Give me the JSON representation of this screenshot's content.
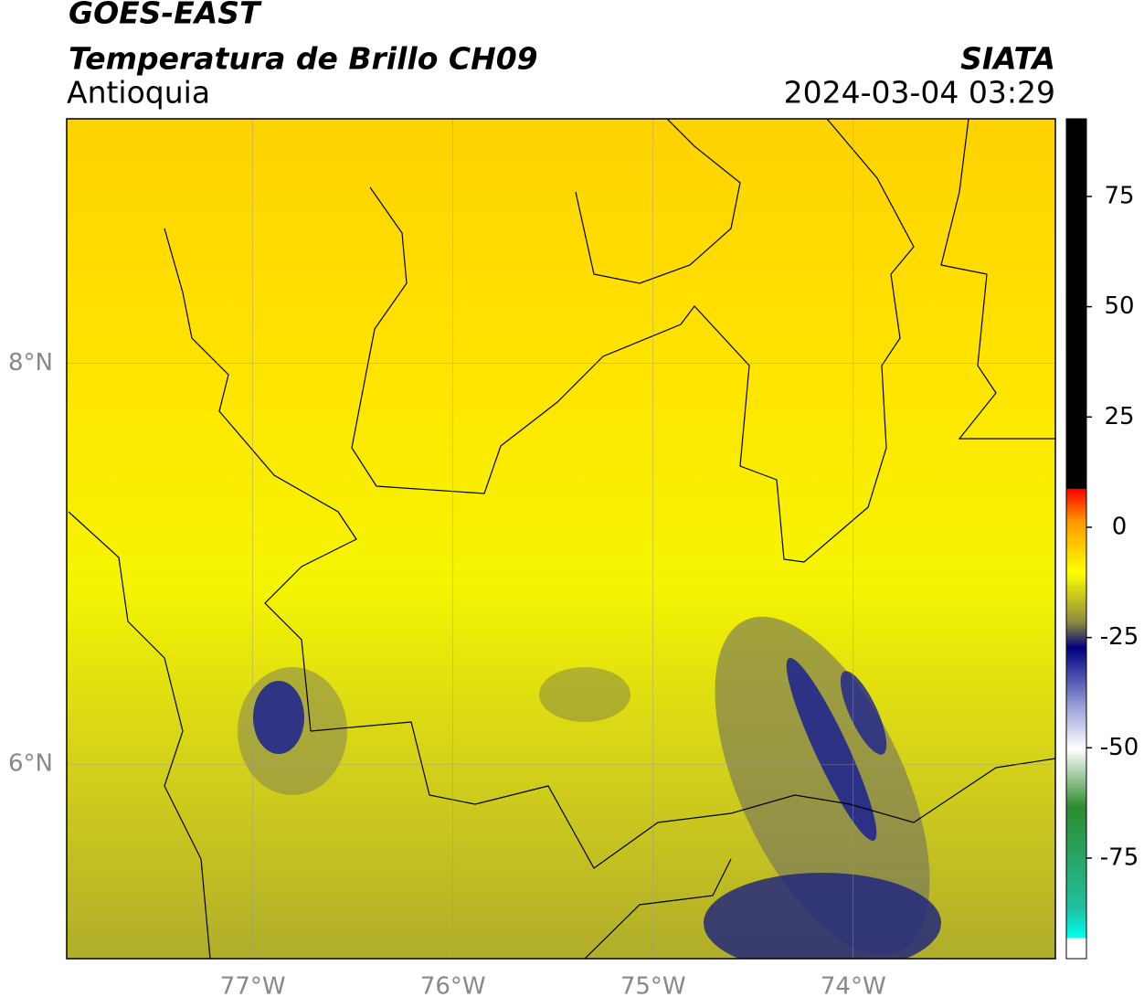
{
  "header": {
    "satellite": "GOES-EAST",
    "product": "Temperatura de Brillo CH09",
    "region": "Antioquia",
    "source": "SIATA",
    "datetime": "2024-03-04 03:29"
  },
  "map": {
    "xlim": [
      -77.93,
      -72.99
    ],
    "ylim": [
      5.03,
      9.22
    ],
    "xticks": [
      {
        "value": -77,
        "label": "77°W"
      },
      {
        "value": -76,
        "label": "76°W"
      },
      {
        "value": -75,
        "label": "75°W"
      },
      {
        "value": -74,
        "label": "74°W"
      }
    ],
    "yticks": [
      {
        "value": 8,
        "label": "8°N"
      },
      {
        "value": 6,
        "label": "6°N"
      }
    ],
    "grid": true
  },
  "colorbar": {
    "lim": [
      -97.8,
      92.6
    ],
    "ticks": [
      75,
      50,
      25,
      0,
      -25,
      -50,
      -75
    ]
  }
}
